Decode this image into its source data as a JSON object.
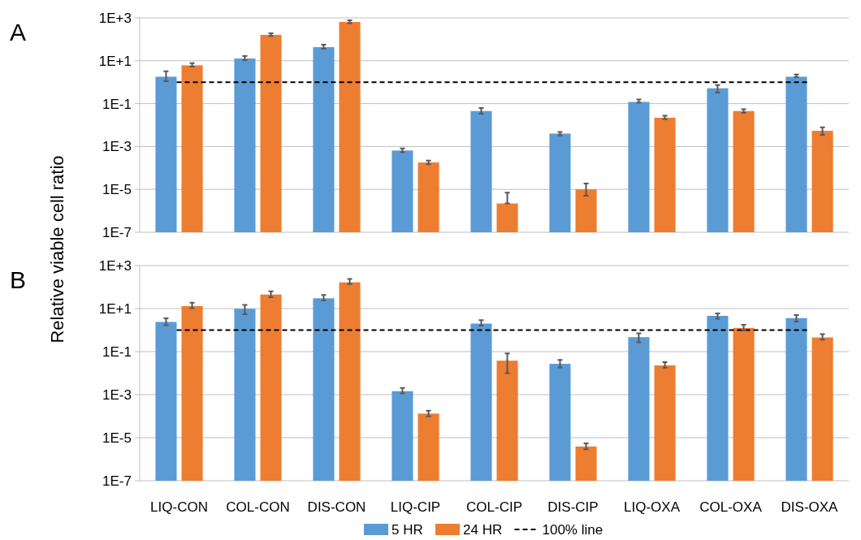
{
  "chart_data": [
    {
      "type": "bar",
      "title": "A",
      "ylabel": "Relative viable cell ratio",
      "categories": [
        null,
        null,
        null,
        null,
        null,
        null,
        null,
        null,
        null
      ],
      "series": [
        {
          "color": "#5b9bd5",
          "values": [
            1.8,
            12.7,
            43,
            0.00065,
            0.045,
            0.004,
            0.12,
            0.52,
            1.8
          ],
          "errors": [
            [
              1.1,
              3.2
            ],
            [
              10.4,
              16.6
            ],
            [
              36,
              56
            ],
            [
              0.00054,
              0.00081
            ],
            [
              0.034,
              0.063
            ],
            [
              0.0033,
              0.0048
            ],
            [
              0.109,
              0.156
            ],
            [
              0.33,
              0.74
            ],
            [
              1.7,
              2.3
            ]
          ]
        },
        {
          "color": "#ed7d31",
          "values": [
            6.1,
            161,
            643,
            0.00018,
            2.2e-06,
            1e-05,
            0.022,
            0.045,
            0.0054
          ],
          "errors": [
            [
              5.3,
              7.7
            ],
            [
              143,
              192
            ],
            [
              571,
              767
            ],
            [
              0.00015,
              0.00022
            ],
            [
              2.2e-06,
              7.1e-06
            ],
            [
              5.1e-06,
              1.86e-05
            ],
            [
              0.019,
              0.027
            ],
            [
              0.037,
              0.055
            ],
            [
              0.0035,
              0.0078
            ]
          ]
        }
      ],
      "log": true,
      "ylim": [
        1e-07,
        1000
      ],
      "yticks": [
        {
          "value": 1e-07,
          "label": "1E-7"
        },
        {
          "value": 1e-05,
          "label": "1E-5"
        },
        {
          "value": 0.001,
          "label": "1E-3"
        },
        {
          "value": 0.1,
          "label": "1E-1"
        },
        {
          "value": 10,
          "label": "1E+1"
        },
        {
          "value": 1000,
          "label": "1E+3"
        }
      ],
      "grid": "y",
      "tick_labels": "y",
      "legend": false,
      "ref_lines": [
        {
          "axis": "y",
          "value": 1,
          "color": "#000000",
          "line_style": "dashed"
        }
      ]
    },
    {
      "type": "bar",
      "title": "B",
      "categories": [
        "LIQ-CON",
        "COL-CON",
        "DIS-CON",
        "LIQ-CIP",
        "COL-CIP",
        "DIS-CIP",
        "LIQ-OXA",
        "COL-OXA",
        "DIS-OXA"
      ],
      "series": [
        {
          "name": "5 HR",
          "color": "#5b9bd5",
          "values": [
            2.4,
            9.8,
            30,
            0.00145,
            2.0,
            0.027,
            0.47,
            4.6,
            3.6
          ],
          "errors": [
            [
              1.7,
              3.5
            ],
            [
              5.4,
              14.8
            ],
            [
              24,
              43
            ],
            [
              0.00115,
              0.00207
            ],
            [
              1.6,
              2.9
            ],
            [
              0.0185,
              0.041
            ],
            [
              0.27,
              0.71
            ],
            [
              3.4,
              6.0
            ],
            [
              2.5,
              5.0
            ]
          ]
        },
        {
          "name": "24 HR",
          "color": "#ed7d31",
          "values": [
            13.1,
            45,
            166,
            0.000132,
            0.038,
            3.9e-06,
            0.0228,
            1.26,
            0.455
          ],
          "errors": [
            [
              10.4,
              18.7
            ],
            [
              34,
              64
            ],
            [
              139,
              236
            ],
            [
              9.8e-05,
              0.000178
            ],
            [
              0.0101,
              0.083
            ],
            [
              2.9e-06,
              5.4e-06
            ],
            [
              0.018,
              0.032
            ],
            [
              0.96,
              1.75
            ],
            [
              0.36,
              0.65
            ]
          ]
        }
      ],
      "log": true,
      "ylim": [
        1e-07,
        1000
      ],
      "yticks": [
        {
          "value": 1e-07,
          "label": "1E-7"
        },
        {
          "value": 1e-05,
          "label": "1E-5"
        },
        {
          "value": 0.001,
          "label": "1E-3"
        },
        {
          "value": 0.1,
          "label": "1E-1"
        },
        {
          "value": 10,
          "label": "1E+1"
        },
        {
          "value": 1000,
          "label": "1E+3"
        }
      ],
      "grid": "y",
      "legend": "bottom",
      "ref_lines": [
        {
          "axis": "y",
          "value": 1,
          "label": "100% line",
          "color": "#000000",
          "line_style": "dashed"
        }
      ]
    }
  ]
}
